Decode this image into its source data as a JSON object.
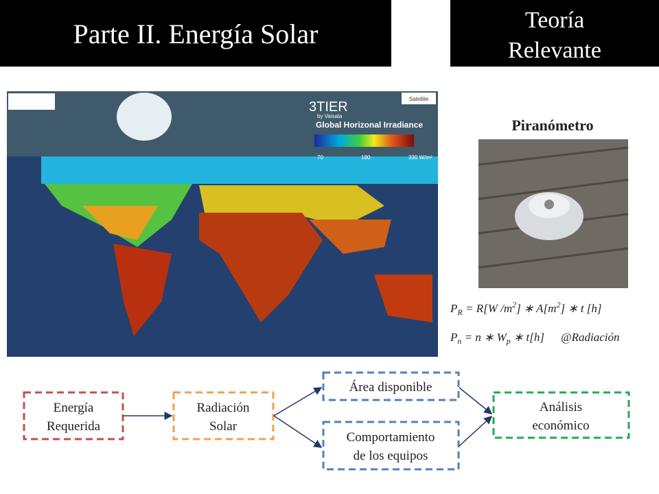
{
  "header": {
    "title": "Parte II. Energía Solar",
    "section": [
      "Teoría",
      "Relevante"
    ]
  },
  "map": {
    "brand": "3TIER",
    "brand_sub": "by Vaisala",
    "legend_title": "Global Horizonal Irradiance",
    "layer_button": "Satellite",
    "legend_ticks": [
      "70",
      "180",
      "330 W/m²"
    ]
  },
  "sidebar": {
    "title": "Piranómetro",
    "formula_1": [
      "P",
      "R",
      " = R[W /m",
      "2",
      "] ∗ A[m",
      "2",
      "] ∗ t [h]"
    ],
    "formula_2": [
      "P",
      "n",
      " = n ∗ W",
      "p",
      " ∗ t[h]",
      "@Radiación"
    ]
  },
  "flow": {
    "nodes": [
      {
        "lines": [
          "Energía",
          "Requerida"
        ]
      },
      {
        "lines": [
          "Radiación",
          "Solar"
        ]
      },
      {
        "lines": [
          "Área disponible"
        ]
      },
      {
        "lines": [
          "Comportamiento",
          "de los equipos"
        ]
      },
      {
        "lines": [
          "Análisis",
          "económico"
        ]
      }
    ]
  }
}
